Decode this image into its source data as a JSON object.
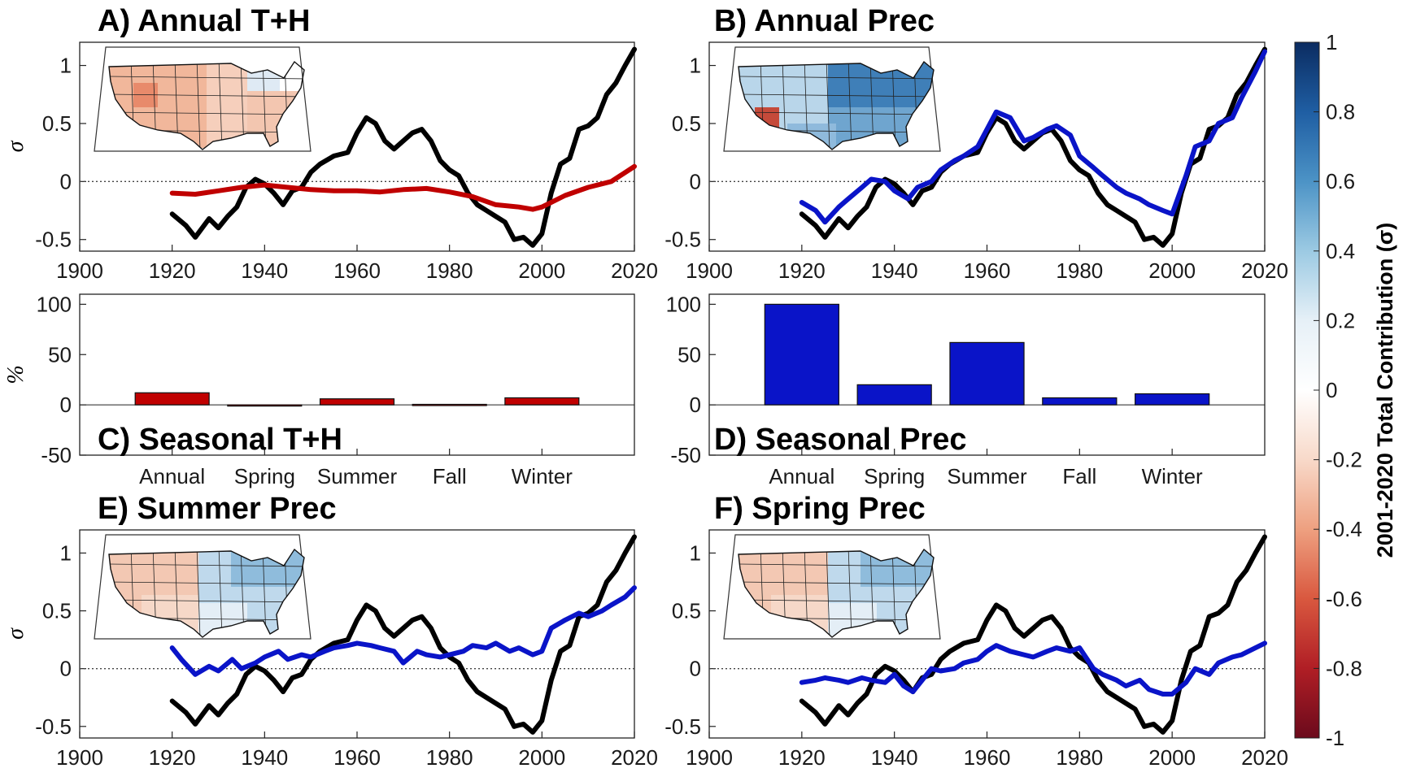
{
  "colors": {
    "black": "#000000",
    "red": "#c00000",
    "blue": "#0a14c8",
    "zero_line": "#444444"
  },
  "chart_data": [
    {
      "id": "A",
      "type": "line",
      "title": "A) Annual T+H",
      "ylabel": "σ",
      "xlim": [
        1900,
        2020
      ],
      "ylim": [
        -0.6,
        1.2
      ],
      "xticks": [
        "1900",
        "1920",
        "1940",
        "1960",
        "1980",
        "2000",
        "2020"
      ],
      "yticks": [
        "-0.5",
        "0",
        "0.5",
        "1"
      ],
      "inset_map": "red",
      "series": [
        {
          "color": "black",
          "x": [
            1920,
            1923,
            1925,
            1928,
            1930,
            1932,
            1934,
            1936,
            1938,
            1940,
            1942,
            1944,
            1946,
            1948,
            1950,
            1952,
            1955,
            1958,
            1960,
            1962,
            1964,
            1966,
            1968,
            1970,
            1972,
            1974,
            1976,
            1978,
            1980,
            1982,
            1984,
            1986,
            1988,
            1990,
            1992,
            1994,
            1996,
            1998,
            2000,
            2002,
            2004,
            2006,
            2008,
            2010,
            2012,
            2014,
            2016,
            2018,
            2020
          ],
          "y": [
            -0.28,
            -0.38,
            -0.48,
            -0.32,
            -0.4,
            -0.3,
            -0.22,
            -0.05,
            0.02,
            -0.02,
            -0.1,
            -0.2,
            -0.08,
            -0.05,
            0.08,
            0.15,
            0.22,
            0.25,
            0.42,
            0.55,
            0.5,
            0.35,
            0.28,
            0.35,
            0.42,
            0.45,
            0.35,
            0.18,
            0.1,
            0.05,
            -0.1,
            -0.2,
            -0.25,
            -0.3,
            -0.35,
            -0.5,
            -0.48,
            -0.55,
            -0.45,
            -0.1,
            0.15,
            0.2,
            0.45,
            0.48,
            0.55,
            0.75,
            0.85,
            1.0,
            1.14
          ]
        },
        {
          "color": "red",
          "x": [
            1920,
            1925,
            1930,
            1935,
            1940,
            1945,
            1950,
            1955,
            1960,
            1965,
            1970,
            1975,
            1980,
            1985,
            1990,
            1995,
            1998,
            2000,
            2005,
            2010,
            2015,
            2020
          ],
          "y": [
            -0.1,
            -0.11,
            -0.08,
            -0.05,
            -0.03,
            -0.05,
            -0.07,
            -0.08,
            -0.08,
            -0.09,
            -0.07,
            -0.06,
            -0.09,
            -0.13,
            -0.2,
            -0.22,
            -0.24,
            -0.22,
            -0.12,
            -0.05,
            0.0,
            0.13
          ]
        }
      ]
    },
    {
      "id": "B",
      "type": "line",
      "title": "B) Annual Prec",
      "ylabel": "",
      "xlim": [
        1900,
        2020
      ],
      "ylim": [
        -0.6,
        1.2
      ],
      "xticks": [
        "1900",
        "1920",
        "1940",
        "1960",
        "1980",
        "2000",
        "2020"
      ],
      "yticks": [
        "-0.5",
        "0",
        "0.5",
        "1"
      ],
      "inset_map": "blue",
      "series": [
        {
          "color": "black",
          "x": [
            1920,
            1923,
            1925,
            1928,
            1930,
            1932,
            1934,
            1936,
            1938,
            1940,
            1942,
            1944,
            1946,
            1948,
            1950,
            1952,
            1955,
            1958,
            1960,
            1962,
            1964,
            1966,
            1968,
            1970,
            1972,
            1974,
            1976,
            1978,
            1980,
            1982,
            1984,
            1986,
            1988,
            1990,
            1992,
            1994,
            1996,
            1998,
            2000,
            2002,
            2004,
            2006,
            2008,
            2010,
            2012,
            2014,
            2016,
            2018,
            2020
          ],
          "y": [
            -0.28,
            -0.38,
            -0.48,
            -0.32,
            -0.4,
            -0.3,
            -0.22,
            -0.05,
            0.02,
            -0.02,
            -0.1,
            -0.2,
            -0.08,
            -0.05,
            0.08,
            0.15,
            0.22,
            0.25,
            0.42,
            0.55,
            0.5,
            0.35,
            0.28,
            0.35,
            0.42,
            0.45,
            0.35,
            0.18,
            0.1,
            0.05,
            -0.1,
            -0.2,
            -0.25,
            -0.3,
            -0.35,
            -0.5,
            -0.48,
            -0.55,
            -0.45,
            -0.1,
            0.15,
            0.2,
            0.45,
            0.48,
            0.55,
            0.75,
            0.85,
            1.0,
            1.14
          ]
        },
        {
          "color": "blue",
          "x": [
            1920,
            1923,
            1925,
            1928,
            1930,
            1933,
            1935,
            1938,
            1940,
            1943,
            1945,
            1948,
            1950,
            1953,
            1955,
            1958,
            1960,
            1962,
            1965,
            1968,
            1970,
            1973,
            1975,
            1978,
            1980,
            1983,
            1985,
            1988,
            1990,
            1993,
            1995,
            1998,
            2000,
            2003,
            2005,
            2008,
            2010,
            2013,
            2015,
            2018,
            2020
          ],
          "y": [
            -0.18,
            -0.25,
            -0.35,
            -0.22,
            -0.15,
            -0.05,
            0.02,
            0.0,
            -0.08,
            -0.15,
            -0.05,
            0.0,
            0.1,
            0.18,
            0.22,
            0.3,
            0.45,
            0.6,
            0.55,
            0.35,
            0.38,
            0.45,
            0.48,
            0.4,
            0.22,
            0.12,
            0.05,
            -0.05,
            -0.1,
            -0.15,
            -0.2,
            -0.25,
            -0.28,
            0.05,
            0.3,
            0.35,
            0.5,
            0.55,
            0.72,
            0.95,
            1.12
          ]
        }
      ]
    },
    {
      "id": "C",
      "type": "bar",
      "title": "C) Seasonal T+H",
      "ylabel": "%",
      "ylim": [
        -50,
        110
      ],
      "yticks": [
        "-50",
        "0",
        "50",
        "100"
      ],
      "categories": [
        "Annual",
        "Spring",
        "Summer",
        "Fall",
        "Winter"
      ],
      "values": [
        12,
        -1,
        6,
        0.5,
        7
      ],
      "color": "red"
    },
    {
      "id": "D",
      "type": "bar",
      "title": "D) Seasonal Prec",
      "ylabel": "",
      "ylim": [
        -50,
        110
      ],
      "yticks": [
        "-50",
        "0",
        "50",
        "100"
      ],
      "categories": [
        "Annual",
        "Spring",
        "Summer",
        "Fall",
        "Winter"
      ],
      "values": [
        100,
        20,
        62,
        7,
        11
      ],
      "color": "blue"
    },
    {
      "id": "E",
      "type": "line",
      "title": "E) Summer Prec",
      "ylabel": "σ",
      "xlim": [
        1900,
        2020
      ],
      "ylim": [
        -0.6,
        1.2
      ],
      "xticks": [
        "1900",
        "1920",
        "1940",
        "1960",
        "1980",
        "2000",
        "2020"
      ],
      "yticks": [
        "-0.5",
        "0",
        "0.5",
        "1"
      ],
      "inset_map": "mixed",
      "series": [
        {
          "color": "black",
          "x": [
            1920,
            1923,
            1925,
            1928,
            1930,
            1932,
            1934,
            1936,
            1938,
            1940,
            1942,
            1944,
            1946,
            1948,
            1950,
            1952,
            1955,
            1958,
            1960,
            1962,
            1964,
            1966,
            1968,
            1970,
            1972,
            1974,
            1976,
            1978,
            1980,
            1982,
            1984,
            1986,
            1988,
            1990,
            1992,
            1994,
            1996,
            1998,
            2000,
            2002,
            2004,
            2006,
            2008,
            2010,
            2012,
            2014,
            2016,
            2018,
            2020
          ],
          "y": [
            -0.28,
            -0.38,
            -0.48,
            -0.32,
            -0.4,
            -0.3,
            -0.22,
            -0.05,
            0.02,
            -0.02,
            -0.1,
            -0.2,
            -0.08,
            -0.05,
            0.08,
            0.15,
            0.22,
            0.25,
            0.42,
            0.55,
            0.5,
            0.35,
            0.28,
            0.35,
            0.42,
            0.45,
            0.35,
            0.18,
            0.1,
            0.05,
            -0.1,
            -0.2,
            -0.25,
            -0.3,
            -0.35,
            -0.5,
            -0.48,
            -0.55,
            -0.45,
            -0.1,
            0.15,
            0.2,
            0.45,
            0.48,
            0.55,
            0.75,
            0.85,
            1.0,
            1.14
          ]
        },
        {
          "color": "blue",
          "x": [
            1920,
            1922,
            1925,
            1928,
            1930,
            1933,
            1935,
            1938,
            1940,
            1943,
            1945,
            1948,
            1950,
            1953,
            1955,
            1958,
            1960,
            1963,
            1965,
            1968,
            1970,
            1973,
            1975,
            1978,
            1980,
            1983,
            1985,
            1988,
            1990,
            1993,
            1995,
            1998,
            2000,
            2002,
            2005,
            2008,
            2010,
            2013,
            2015,
            2018,
            2020
          ],
          "y": [
            0.18,
            0.08,
            -0.05,
            0.02,
            -0.02,
            0.08,
            0.0,
            0.05,
            0.1,
            0.15,
            0.08,
            0.12,
            0.1,
            0.15,
            0.18,
            0.2,
            0.22,
            0.2,
            0.18,
            0.15,
            0.05,
            0.15,
            0.12,
            0.1,
            0.12,
            0.15,
            0.2,
            0.18,
            0.22,
            0.15,
            0.18,
            0.12,
            0.15,
            0.35,
            0.42,
            0.48,
            0.45,
            0.5,
            0.55,
            0.62,
            0.7
          ]
        }
      ]
    },
    {
      "id": "F",
      "type": "line",
      "title": "F) Spring Prec",
      "ylabel": "",
      "xlim": [
        1900,
        2020
      ],
      "ylim": [
        -0.6,
        1.2
      ],
      "xticks": [
        "1900",
        "1920",
        "1940",
        "1960",
        "1980",
        "2000",
        "2020"
      ],
      "yticks": [
        "-0.5",
        "0",
        "0.5",
        "1"
      ],
      "inset_map": "mixed",
      "series": [
        {
          "color": "black",
          "x": [
            1920,
            1923,
            1925,
            1928,
            1930,
            1932,
            1934,
            1936,
            1938,
            1940,
            1942,
            1944,
            1946,
            1948,
            1950,
            1952,
            1955,
            1958,
            1960,
            1962,
            1964,
            1966,
            1968,
            1970,
            1972,
            1974,
            1976,
            1978,
            1980,
            1982,
            1984,
            1986,
            1988,
            1990,
            1992,
            1994,
            1996,
            1998,
            2000,
            2002,
            2004,
            2006,
            2008,
            2010,
            2012,
            2014,
            2016,
            2018,
            2020
          ],
          "y": [
            -0.28,
            -0.38,
            -0.48,
            -0.32,
            -0.4,
            -0.3,
            -0.22,
            -0.05,
            0.02,
            -0.02,
            -0.1,
            -0.2,
            -0.08,
            -0.05,
            0.08,
            0.15,
            0.22,
            0.25,
            0.42,
            0.55,
            0.5,
            0.35,
            0.28,
            0.35,
            0.42,
            0.45,
            0.35,
            0.18,
            0.1,
            0.05,
            -0.1,
            -0.2,
            -0.25,
            -0.3,
            -0.35,
            -0.5,
            -0.48,
            -0.55,
            -0.45,
            -0.1,
            0.15,
            0.2,
            0.45,
            0.48,
            0.55,
            0.75,
            0.85,
            1.0,
            1.14
          ]
        },
        {
          "color": "blue",
          "x": [
            1920,
            1923,
            1925,
            1928,
            1930,
            1933,
            1935,
            1938,
            1940,
            1942,
            1944,
            1946,
            1948,
            1950,
            1953,
            1955,
            1958,
            1960,
            1962,
            1965,
            1968,
            1970,
            1973,
            1975,
            1978,
            1980,
            1983,
            1985,
            1988,
            1990,
            1993,
            1995,
            1998,
            2000,
            2003,
            2005,
            2008,
            2010,
            2013,
            2015,
            2018,
            2020
          ],
          "y": [
            -0.12,
            -0.1,
            -0.08,
            -0.1,
            -0.12,
            -0.08,
            -0.1,
            -0.12,
            -0.05,
            -0.15,
            -0.2,
            -0.1,
            0.0,
            -0.02,
            0.0,
            0.05,
            0.08,
            0.15,
            0.2,
            0.15,
            0.12,
            0.1,
            0.15,
            0.18,
            0.15,
            0.18,
            0.0,
            -0.05,
            -0.1,
            -0.15,
            -0.1,
            -0.18,
            -0.22,
            -0.22,
            -0.12,
            0.0,
            -0.05,
            0.05,
            0.1,
            0.12,
            0.18,
            0.22
          ]
        }
      ]
    }
  ],
  "colorbar": {
    "label": "2001-2020 Total Contribution (σ)",
    "ticks": [
      "1",
      "0.8",
      "0.6",
      "0.4",
      "0.2",
      "0",
      "-0.2",
      "-0.4",
      "-0.6",
      "-0.8",
      "-1"
    ],
    "stops": [
      "#0b2c61",
      "#1f5ea3",
      "#4c93c6",
      "#9ccae3",
      "#e6f0f7",
      "#ffffff",
      "#f8d9c9",
      "#eea080",
      "#d9583f",
      "#b01e25",
      "#6b0a1c"
    ]
  }
}
